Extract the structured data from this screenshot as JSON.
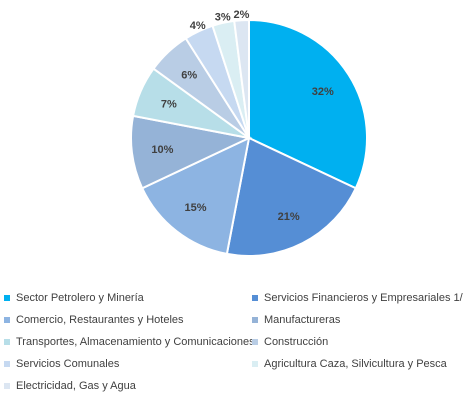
{
  "chart_data": {
    "type": "pie",
    "title": "",
    "legend_position": "bottom",
    "slices": [
      {
        "label": "Sector Petrolero y Minería",
        "value": 32,
        "display": "32%",
        "color": "#00B0F0"
      },
      {
        "label": "Servicios Financieros y Empresariales 1/",
        "value": 21,
        "display": "21%",
        "color": "#558ED5"
      },
      {
        "label": "Comercio, Restaurantes y Hoteles",
        "value": 15,
        "display": "15%",
        "color": "#8DB4E2"
      },
      {
        "label": "Manufactureras",
        "value": 10,
        "display": "10%",
        "color": "#95B3D7"
      },
      {
        "label": "Transportes, Almacenamiento y Comunicaciones",
        "value": 7,
        "display": "7%",
        "color": "#B7DEE8"
      },
      {
        "label": "Construcción",
        "value": 6,
        "display": "6%",
        "color": "#B9CDE5"
      },
      {
        "label": "Servicios Comunales",
        "value": 4,
        "display": "4%",
        "color": "#C6D9F1"
      },
      {
        "label": "Agricultura Caza, Silvicultura y Pesca",
        "value": 3,
        "display": "3%",
        "color": "#DAEEF3"
      },
      {
        "label": "Electricidad, Gas y Agua",
        "value": 2,
        "display": "2%",
        "color": "#DCE6F2"
      }
    ]
  }
}
